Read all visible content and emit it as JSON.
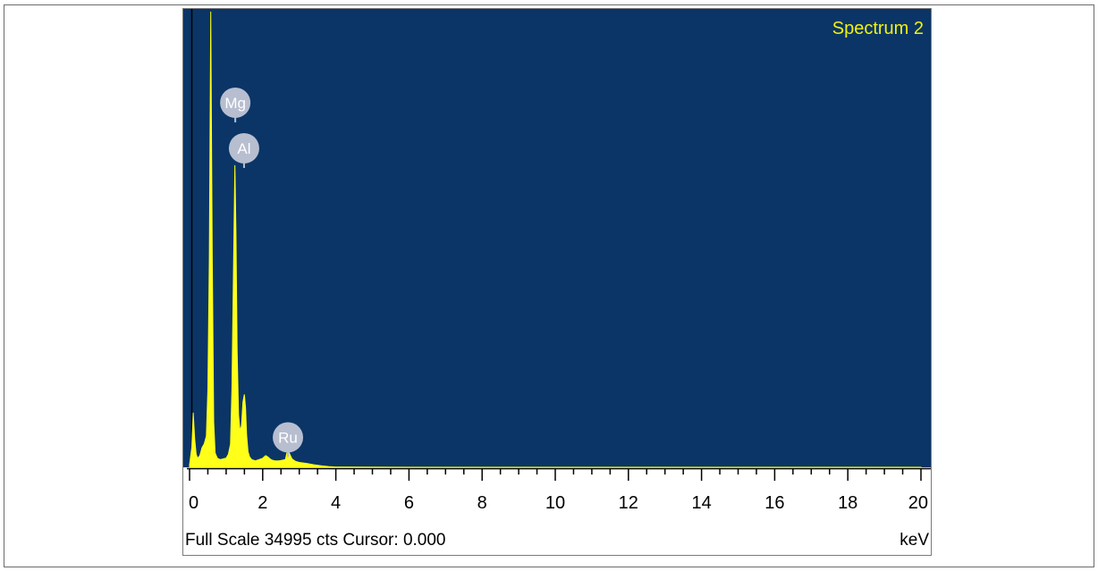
{
  "colors": {
    "plot_background": "#0a3566",
    "spectrum": "#ffff1a",
    "title": "#f2f20f",
    "peak_marker": "#b7bed0",
    "axis": "#000000"
  },
  "status": {
    "full_scale": "Full Scale 34995 cts Cursor: 0.000",
    "unit": "keV"
  },
  "chart_data": {
    "type": "area",
    "title": "Spectrum 2",
    "xlabel": "keV",
    "ylabel": "",
    "xlim": [
      0,
      20
    ],
    "ylim": [
      0,
      34995
    ],
    "x_ticks": [
      "0",
      "2",
      "4",
      "6",
      "8",
      "10",
      "12",
      "14",
      "16",
      "18",
      "20"
    ],
    "grid": false,
    "peak_labels": [
      {
        "label": "Mg",
        "x": 1.25,
        "y": 28000
      },
      {
        "label": "Al",
        "x": 1.49,
        "y": 24500
      },
      {
        "label": "Ru",
        "x": 2.69,
        "y": 2300
      }
    ],
    "series": [
      {
        "x": [
          0.0,
          0.06,
          0.1,
          0.14,
          0.18,
          0.22,
          0.28,
          0.34,
          0.4,
          0.46,
          0.5,
          0.54,
          0.58,
          0.62,
          0.66,
          0.7,
          0.76,
          0.84,
          0.92,
          1.0,
          1.06,
          1.12,
          1.16,
          1.2,
          1.24,
          1.27,
          1.3,
          1.34,
          1.38,
          1.42,
          1.46,
          1.5,
          1.53,
          1.56,
          1.6,
          1.64,
          1.7,
          1.8,
          1.9,
          2.0,
          2.08,
          2.14,
          2.2,
          2.26,
          2.34,
          2.44,
          2.54,
          2.62,
          2.66,
          2.7,
          2.74,
          2.8,
          2.9,
          3.0,
          3.2,
          3.4,
          3.6,
          3.8,
          4.0,
          6.0,
          8.0,
          10.0,
          12.0,
          14.0,
          16.0,
          18.0,
          20.0
        ],
        "y": [
          200,
          1500,
          4200,
          2200,
          1000,
          700,
          900,
          1500,
          1800,
          2400,
          6000,
          16000,
          34995,
          16000,
          3500,
          1100,
          700,
          600,
          650,
          700,
          1000,
          1800,
          6000,
          15000,
          23200,
          18000,
          9000,
          4000,
          2800,
          3200,
          5000,
          5600,
          4600,
          2500,
          1200,
          800,
          600,
          500,
          600,
          700,
          900,
          800,
          650,
          550,
          500,
          500,
          550,
          600,
          1100,
          1300,
          1000,
          650,
          450,
          380,
          300,
          200,
          120,
          60,
          30,
          10,
          5,
          5,
          5,
          5,
          5,
          5,
          5
        ]
      }
    ]
  }
}
